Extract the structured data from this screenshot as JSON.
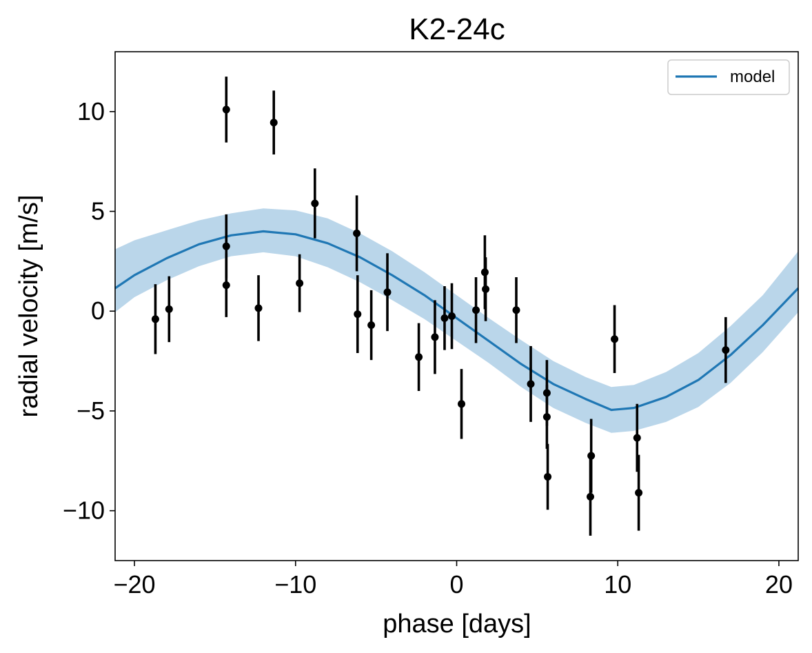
{
  "chart_data": {
    "type": "scatter",
    "title": "K2-24c",
    "xlabel": "phase [days]",
    "ylabel": "radial velocity [m/s]",
    "xlim": [
      -21.2,
      21.2
    ],
    "ylim": [
      -12.5,
      13
    ],
    "xticks": [
      -20,
      -10,
      0,
      10,
      20
    ],
    "xtick_labels": [
      "−20",
      "−10",
      "0",
      "10",
      "20"
    ],
    "yticks": [
      -10,
      -5,
      0,
      5,
      10
    ],
    "ytick_labels": [
      "−10",
      "−5",
      "0",
      "5",
      "10"
    ],
    "grid": false,
    "legend_position": "top-right",
    "colors": {
      "model": "#1f77b4",
      "band": "#bad6ea",
      "points": "#000000"
    },
    "model": {
      "name": "model",
      "x": [
        -21.2,
        -20,
        -18,
        -16,
        -14,
        -12,
        -10,
        -8,
        -6,
        -4,
        -2,
        0,
        2,
        4,
        6,
        8,
        9.6,
        11,
        13,
        15,
        17,
        19,
        21.2
      ],
      "y": [
        1.15,
        1.8,
        2.65,
        3.35,
        3.8,
        4.0,
        3.85,
        3.4,
        2.7,
        1.8,
        0.8,
        -0.35,
        -1.5,
        -2.65,
        -3.65,
        -4.4,
        -4.95,
        -4.85,
        -4.3,
        -3.45,
        -2.2,
        -0.7,
        1.15
      ],
      "upper": [
        3.1,
        3.55,
        4.05,
        4.55,
        4.9,
        5.15,
        5.05,
        4.65,
        3.9,
        3.0,
        1.95,
        0.8,
        -0.35,
        -1.45,
        -2.5,
        -3.3,
        -3.8,
        -3.7,
        -3.05,
        -2.1,
        -0.75,
        0.8,
        3.0
      ],
      "lower": [
        -0.05,
        0.7,
        1.55,
        2.25,
        2.75,
        2.95,
        2.75,
        2.2,
        1.45,
        0.55,
        -0.4,
        -1.5,
        -2.6,
        -3.8,
        -4.85,
        -5.6,
        -6.1,
        -6.0,
        -5.55,
        -4.8,
        -3.6,
        -2.05,
        -0.05
      ]
    },
    "points": [
      {
        "x": -18.7,
        "y": -0.4,
        "err": 1.75
      },
      {
        "x": -17.85,
        "y": 0.1,
        "err": 1.65
      },
      {
        "x": -14.3,
        "y": 10.1,
        "err": 1.65
      },
      {
        "x": -14.3,
        "y": 3.25,
        "err": 1.6
      },
      {
        "x": -14.3,
        "y": 1.3,
        "err": 1.6
      },
      {
        "x": -11.35,
        "y": 9.45,
        "err": 1.6
      },
      {
        "x": -12.3,
        "y": 0.15,
        "err": 1.65
      },
      {
        "x": -9.75,
        "y": 1.4,
        "err": 1.45
      },
      {
        "x": -8.8,
        "y": 5.4,
        "err": 1.75
      },
      {
        "x": -6.2,
        "y": 3.9,
        "err": 1.9
      },
      {
        "x": -6.15,
        "y": -0.15,
        "err": 1.95
      },
      {
        "x": -5.3,
        "y": -0.7,
        "err": 1.75
      },
      {
        "x": -4.3,
        "y": 0.95,
        "err": 1.95
      },
      {
        "x": -2.35,
        "y": -2.3,
        "err": 1.7
      },
      {
        "x": -1.35,
        "y": -1.3,
        "err": 1.85
      },
      {
        "x": -0.75,
        "y": -0.35,
        "err": 1.6
      },
      {
        "x": -0.3,
        "y": -0.25,
        "err": 1.65
      },
      {
        "x": 0.3,
        "y": -4.65,
        "err": 1.75
      },
      {
        "x": 1.2,
        "y": 0.05,
        "err": 1.65
      },
      {
        "x": 1.75,
        "y": 1.95,
        "err": 1.85
      },
      {
        "x": 1.8,
        "y": 1.1,
        "err": 1.6
      },
      {
        "x": 3.7,
        "y": 0.05,
        "err": 1.65
      },
      {
        "x": 4.6,
        "y": -3.65,
        "err": 1.9
      },
      {
        "x": 5.6,
        "y": -4.1,
        "err": 1.65
      },
      {
        "x": 5.6,
        "y": -5.3,
        "err": 1.6
      },
      {
        "x": 5.65,
        "y": -8.3,
        "err": 1.65
      },
      {
        "x": 8.35,
        "y": -7.25,
        "err": 1.85
      },
      {
        "x": 8.3,
        "y": -9.3,
        "err": 1.95
      },
      {
        "x": 9.8,
        "y": -1.4,
        "err": 1.7
      },
      {
        "x": 11.2,
        "y": -6.35,
        "err": 1.7
      },
      {
        "x": 11.3,
        "y": -9.1,
        "err": 1.9
      },
      {
        "x": 16.7,
        "y": -1.95,
        "err": 1.65
      }
    ]
  }
}
